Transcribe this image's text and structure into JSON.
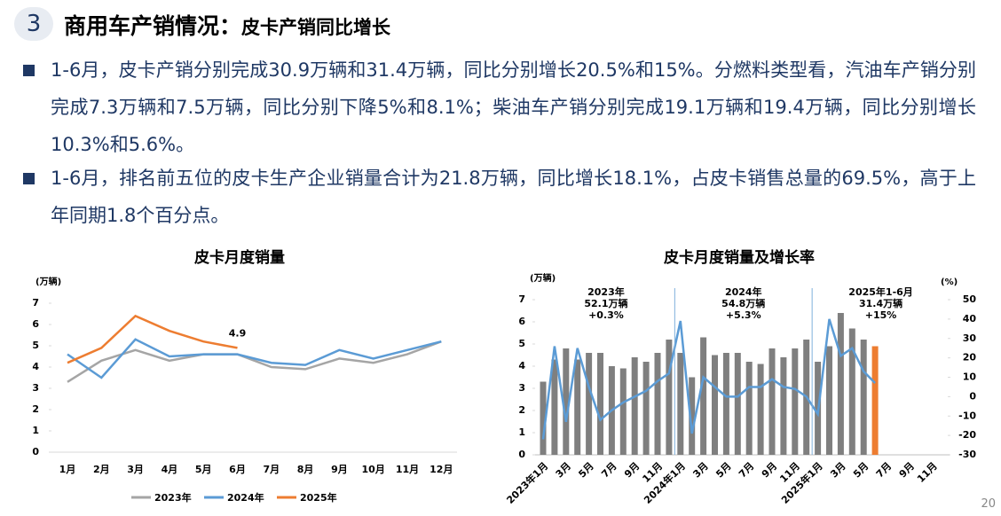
{
  "header": {
    "number": "3",
    "title": "商用车产销情况：",
    "subtitle": "皮卡产销同比增长"
  },
  "bullets": [
    "1-6月，皮卡产销分别完成30.9万辆和31.4万辆，同比分别增长20.5%和15%。分燃料类型看，汽油车产销分别完成7.3万辆和7.5万辆，同比分别下降5%和8.1%；柴油车产销分别完成19.1万辆和19.4万辆，同比分别增长10.3%和5.6%。",
    "1-6月，排名前五位的皮卡生产企业销量合计为21.8万辆，同比增长18.1%，占皮卡销售总量的69.5%，高于上年同期1.8个百分点。"
  ],
  "page_number": "20",
  "chart_data": [
    {
      "type": "line",
      "title": "皮卡月度销量",
      "y_label": "(万辆)",
      "categories": [
        "1月",
        "2月",
        "3月",
        "4月",
        "5月",
        "6月",
        "7月",
        "8月",
        "9月",
        "10月",
        "11月",
        "12月"
      ],
      "ylim": [
        0,
        7
      ],
      "yticks": [
        0,
        1,
        2,
        3,
        4,
        5,
        6,
        7
      ],
      "legend": "bottom",
      "series": [
        {
          "name": "2023年",
          "color": "#a5a5a5",
          "values": [
            3.3,
            4.3,
            4.8,
            4.3,
            4.6,
            4.6,
            4.0,
            3.9,
            4.4,
            4.2,
            4.6,
            5.2
          ]
        },
        {
          "name": "2024年",
          "color": "#5b9bd5",
          "values": [
            4.6,
            3.5,
            5.3,
            4.5,
            4.6,
            4.6,
            4.2,
            4.1,
            4.8,
            4.4,
            4.8,
            5.2
          ]
        },
        {
          "name": "2025年",
          "color": "#ed7d31",
          "values": [
            4.2,
            4.9,
            6.4,
            5.7,
            5.2,
            4.9,
            null,
            null,
            null,
            null,
            null,
            null
          ],
          "value_labels": [
            null,
            null,
            null,
            null,
            null,
            "4.9",
            null,
            null,
            null,
            null,
            null,
            null
          ]
        }
      ]
    },
    {
      "type": "bar",
      "title": "皮卡月度销量及增长率",
      "y_label": "(万辆)",
      "y2_label": "(%)",
      "categories": [
        "2023年1月",
        null,
        "3月",
        null,
        "5月",
        null,
        "7月",
        null,
        "9月",
        null,
        "11月",
        null,
        "2024年1月",
        null,
        "3月",
        null,
        "5月",
        null,
        "7月",
        null,
        "9月",
        null,
        "11月",
        null,
        "2025年1月",
        null,
        "3月",
        null,
        "5月",
        null,
        "7月",
        null,
        "9月",
        null,
        "11月",
        null
      ],
      "ylim": [
        0,
        7
      ],
      "yticks": [
        0,
        1,
        2,
        3,
        4,
        5,
        6,
        7
      ],
      "y2lim": [
        -30,
        50
      ],
      "y2ticks": [
        -30,
        -20,
        -10,
        0,
        10,
        20,
        30,
        40,
        50
      ],
      "series": [
        {
          "values": [
            3.3,
            4.3,
            4.8,
            4.3,
            4.6,
            4.6,
            4.0,
            3.9,
            4.4,
            4.2,
            4.6,
            5.2,
            4.6,
            3.5,
            5.3,
            4.5,
            4.6,
            4.6,
            4.2,
            4.1,
            4.8,
            4.4,
            4.8,
            5.2,
            4.2,
            4.9,
            6.4,
            5.7,
            5.2,
            4.9,
            null,
            null,
            null,
            null,
            null,
            null
          ],
          "colors": [
            "#7f7f7f",
            "#7f7f7f",
            "#7f7f7f",
            "#7f7f7f",
            "#7f7f7f",
            "#7f7f7f",
            "#7f7f7f",
            "#7f7f7f",
            "#7f7f7f",
            "#7f7f7f",
            "#7f7f7f",
            "#7f7f7f",
            "#7f7f7f",
            "#7f7f7f",
            "#7f7f7f",
            "#7f7f7f",
            "#7f7f7f",
            "#7f7f7f",
            "#7f7f7f",
            "#7f7f7f",
            "#7f7f7f",
            "#7f7f7f",
            "#7f7f7f",
            "#7f7f7f",
            "#7f7f7f",
            "#7f7f7f",
            "#7f7f7f",
            "#7f7f7f",
            "#7f7f7f",
            "#ed7d31",
            null,
            null,
            null,
            null,
            null,
            null
          ]
        },
        {
          "type": "line",
          "axis": "y2",
          "color": "#5b9bd5",
          "values": [
            -22,
            26,
            -13,
            25,
            5,
            -12,
            -7,
            -3,
            0,
            3,
            8,
            12,
            39,
            -19,
            10,
            5,
            0,
            0,
            5,
            5,
            9,
            5,
            4,
            0,
            -9,
            40,
            21,
            25,
            13,
            7,
            null,
            null,
            null,
            null,
            null,
            null
          ]
        }
      ],
      "annotations": [
        {
          "lines": [
            "2023年",
            "52.1万辆",
            "+0.3%"
          ]
        },
        {
          "lines": [
            "2024年",
            "54.8万辆",
            "+5.3%"
          ]
        },
        {
          "lines": [
            "2025年1-6月",
            "31.4万辆",
            "+15%"
          ]
        }
      ]
    }
  ]
}
